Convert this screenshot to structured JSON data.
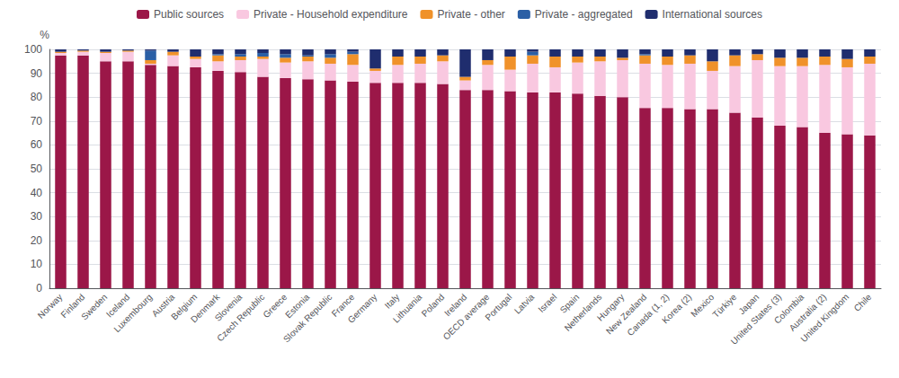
{
  "chart_data": {
    "type": "bar",
    "stacked": true,
    "categories": [
      "Norway",
      "Finland",
      "Sweden",
      "Iceland",
      "Luxembourg",
      "Austria",
      "Belgium",
      "Denmark",
      "Slovenia",
      "Czech Republic",
      "Greece",
      "Estonia",
      "Slovak Republic",
      "France",
      "Germany",
      "Italy",
      "Lithuania",
      "Poland",
      "Ireland",
      "OECD average",
      "Portugal",
      "Latvia",
      "Israel",
      "Spain",
      "Netherlands",
      "Hungary",
      "New Zealand",
      "Canada (1, 2)",
      "Korea (2)",
      "Mexico",
      "Türkiye",
      "Japan",
      "United States (3)",
      "Colombia",
      "Australia (2)",
      "United Kingdom",
      "Chile"
    ],
    "series": [
      {
        "name": "Public sources",
        "color": "#9B1748",
        "values": [
          97.5,
          97.5,
          95.0,
          95.0,
          93.5,
          93.0,
          92.5,
          91.0,
          90.5,
          88.5,
          88.0,
          87.5,
          87.0,
          86.5,
          86.0,
          86.0,
          86.0,
          85.5,
          83.0,
          83.0,
          82.5,
          82.0,
          82.0,
          81.5,
          80.5,
          80.0,
          75.5,
          75.5,
          75.0,
          75.0,
          73.5,
          71.5,
          68.0,
          67.5,
          65.0,
          64.5,
          64.0
        ]
      },
      {
        "name": "Private - Household expenditure",
        "color": "#F9C8E0",
        "values": [
          1.0,
          1.5,
          3.5,
          4.0,
          0.5,
          4.5,
          3.5,
          4.0,
          5.0,
          7.5,
          6.5,
          7.5,
          7.0,
          7.0,
          5.0,
          7.5,
          8.0,
          9.5,
          4.0,
          10.5,
          9.0,
          12.0,
          10.5,
          13.0,
          14.5,
          15.5,
          18.5,
          18.0,
          19.0,
          16.0,
          19.5,
          24.0,
          25.0,
          25.5,
          28.5,
          28.0,
          30.0
        ]
      },
      {
        "name": "Private - other",
        "color": "#F0922A",
        "values": [
          0.5,
          0.5,
          0.5,
          0.5,
          1.5,
          1.5,
          1.0,
          2.5,
          1.5,
          1.0,
          2.0,
          2.0,
          2.5,
          4.5,
          1.0,
          3.5,
          3.0,
          2.5,
          1.5,
          2.0,
          5.5,
          3.5,
          4.5,
          2.5,
          2.0,
          1.0,
          3.5,
          3.5,
          3.5,
          4.0,
          4.5,
          2.5,
          3.5,
          3.5,
          3.5,
          3.5,
          3.0
        ]
      },
      {
        "name": "Private - aggregated",
        "color": "#2B5FA5",
        "values": [
          0.0,
          0.0,
          0.0,
          0.0,
          4.0,
          0.0,
          0.0,
          0.5,
          1.0,
          1.5,
          1.5,
          0.5,
          1.5,
          1.0,
          0.0,
          0.0,
          0.0,
          0.0,
          0.0,
          0.0,
          0.0,
          1.5,
          0.0,
          0.0,
          0.0,
          0.0,
          0.5,
          0.0,
          0.0,
          0.0,
          0.0,
          0.0,
          0.0,
          0.0,
          0.0,
          0.0,
          0.0
        ]
      },
      {
        "name": "International sources",
        "color": "#1F2D6E",
        "values": [
          1.0,
          0.5,
          1.0,
          0.5,
          0.5,
          1.0,
          3.0,
          2.0,
          2.0,
          1.5,
          2.0,
          2.5,
          2.0,
          1.0,
          8.0,
          3.0,
          3.0,
          2.5,
          11.5,
          4.5,
          3.0,
          1.0,
          3.0,
          3.0,
          3.0,
          3.5,
          2.0,
          3.0,
          2.5,
          5.0,
          2.5,
          2.0,
          3.5,
          3.5,
          3.0,
          4.0,
          3.0
        ]
      }
    ],
    "ylabel": "%",
    "ylim": [
      0,
      100
    ],
    "yticks": [
      0,
      10,
      20,
      30,
      40,
      50,
      60,
      70,
      80,
      90,
      100
    ],
    "grid": true,
    "legend": "top"
  }
}
